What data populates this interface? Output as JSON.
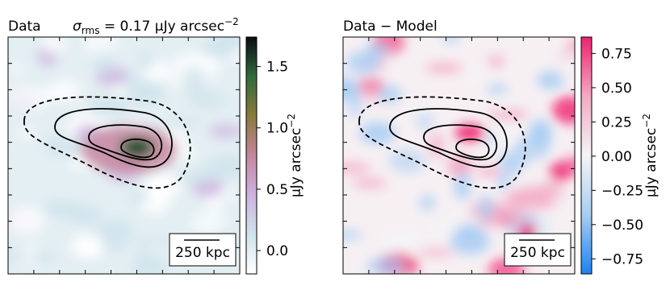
{
  "chart_data": [
    {
      "type": "heatmap",
      "title": "Data",
      "subtitle_symbol": "σ",
      "subtitle_sub": "rms",
      "subtitle_text": " = 0.17 μJy arcsec",
      "subtitle_exp": "−2",
      "scale_bar_label": "250 kpc",
      "colorbar_label": "μJy arcsec",
      "colorbar_label_exp": "−2",
      "colormap": [
        "#ffffff",
        "#cfe3ec",
        "#cdb2df",
        "#c7859f",
        "#8a7a3a",
        "#2f6b3c",
        "#0c0c12"
      ],
      "ylim": [
        -0.19,
        1.74
      ],
      "yticks": [
        {
          "value": 0,
          "label": "0.0"
        },
        0.5,
        {
          "value": 1,
          "label": "1.0"
        },
        1.5
      ]
    },
    {
      "type": "heatmap",
      "title": "Data − Model",
      "scale_bar_label": "250 kpc",
      "colorbar_label": "μJy arcsec",
      "colorbar_label_exp": "−2",
      "colormap": [
        "#1a84f0",
        "#a8cdf3",
        "#f4f4f6",
        "#f4a9c4",
        "#f0216f"
      ],
      "ylim": [
        -0.86,
        0.87
      ],
      "yticks": [
        {
          "value": -0.75,
          "label": "−0.75"
        },
        {
          "value": -0.5,
          "label": "−0.50"
        },
        {
          "value": -0.25,
          "label": "−0.25"
        },
        {
          "value": 0,
          "label": "0.00"
        },
        0.25,
        {
          "value": 0.5,
          "label": "0.50"
        },
        0.75
      ]
    }
  ]
}
